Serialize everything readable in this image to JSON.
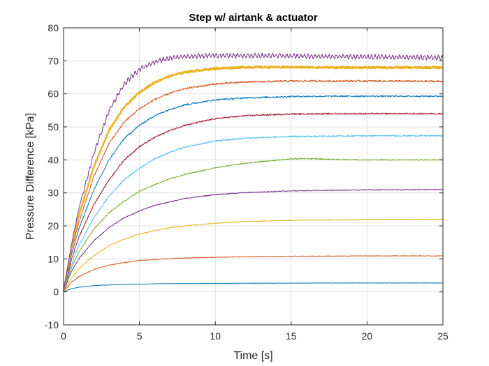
{
  "chart_data": {
    "type": "line",
    "title": "Step w/ airtank & actuator",
    "xlabel": "Time [s]",
    "ylabel": "Pressure Difference [kPa]",
    "xlim": [
      0,
      25
    ],
    "ylim": [
      -10,
      80
    ],
    "xticks": [
      "0",
      "5",
      "10",
      "15",
      "20",
      "25"
    ],
    "yticks": [
      "-10",
      "0",
      "10",
      "20",
      "30",
      "40",
      "50",
      "60",
      "70",
      "80"
    ],
    "grid": true,
    "legend": "none",
    "series": [
      {
        "color": "#0072BD",
        "x": [
          0,
          0.5,
          1,
          2,
          3,
          4,
          5,
          7,
          10,
          15,
          20,
          25
        ],
        "y": [
          0,
          0.9,
          1.4,
          1.9,
          2.1,
          2.25,
          2.35,
          2.5,
          2.6,
          2.65,
          2.7,
          2.7
        ]
      },
      {
        "color": "#D95319",
        "x": [
          0,
          0.5,
          1,
          2,
          3,
          4,
          5,
          7,
          10,
          15,
          20,
          25
        ],
        "y": [
          0,
          2.8,
          4.6,
          6.8,
          8.1,
          8.9,
          9.5,
          10.1,
          10.5,
          10.8,
          10.9,
          10.9
        ]
      },
      {
        "color": "#EDB120",
        "x": [
          0,
          0.5,
          1,
          2,
          3,
          4,
          5,
          6,
          7,
          8,
          10,
          12,
          15,
          18,
          20,
          25
        ],
        "y": [
          0,
          4,
          7,
          11,
          14,
          16,
          17.5,
          18.6,
          19.4,
          20,
          20.8,
          21.3,
          21.7,
          21.8,
          21.9,
          22
        ]
      },
      {
        "color": "#7E2F8E",
        "x": [
          0,
          0.5,
          1,
          2,
          3,
          4,
          5,
          6,
          8,
          10,
          12,
          15,
          18,
          20,
          25
        ],
        "y": [
          0,
          6,
          10,
          15.5,
          19.5,
          22.5,
          24.5,
          26.2,
          28.3,
          29.5,
          30.1,
          30.6,
          30.8,
          30.9,
          31
        ]
      },
      {
        "color": "#77AC30",
        "x": [
          0,
          0.5,
          1,
          2,
          3,
          4,
          5,
          6,
          7,
          8,
          10,
          12,
          14,
          15,
          16,
          18,
          20,
          22,
          25
        ],
        "y": [
          0,
          7,
          12,
          19,
          24,
          27.5,
          30.5,
          32.5,
          34.3,
          35.6,
          37.6,
          39,
          39.9,
          40.3,
          40.4,
          40.1,
          40,
          40,
          40
        ]
      },
      {
        "color": "#4DBEEE",
        "x": [
          0,
          0.5,
          1,
          2,
          3,
          4,
          5,
          6,
          7,
          8,
          10,
          12,
          15,
          18,
          20,
          25
        ],
        "y": [
          0,
          8,
          14,
          22.5,
          29,
          34,
          37.5,
          40.3,
          42.3,
          43.9,
          45.7,
          46.6,
          47.1,
          47.2,
          47.3,
          47.3
        ]
      },
      {
        "color": "#A2142F",
        "x": [
          0,
          0.5,
          1,
          2,
          3,
          4,
          5,
          6,
          7,
          8,
          10,
          12,
          15,
          18,
          20,
          25
        ],
        "y": [
          0,
          9.5,
          16.5,
          26.5,
          34,
          40,
          44,
          46.8,
          48.9,
          50.5,
          52.5,
          53.4,
          53.9,
          54,
          54,
          54
        ]
      },
      {
        "color": "#0072BD",
        "x": [
          0,
          0.5,
          1,
          2,
          3,
          4,
          5,
          6,
          7,
          8,
          10,
          12,
          15,
          18,
          20,
          25
        ],
        "y": [
          0,
          11,
          19,
          31,
          40,
          46.5,
          50.5,
          53.4,
          55.3,
          56.7,
          58.2,
          58.8,
          59.2,
          59.3,
          59.3,
          59.3
        ]
      },
      {
        "color": "#D95319",
        "x": [
          0,
          0.5,
          1,
          2,
          3,
          4,
          5,
          6,
          7,
          8,
          10,
          12,
          15,
          18,
          20,
          25
        ],
        "y": [
          0,
          12,
          21,
          35,
          45,
          51.5,
          55.5,
          58.3,
          60.2,
          61.6,
          63,
          63.6,
          63.9,
          63.9,
          63.9,
          63.8
        ]
      },
      {
        "color": "#EDB120",
        "x": [
          0,
          0.5,
          1,
          2,
          3,
          4,
          5,
          6,
          7,
          8,
          10,
          12,
          15,
          18,
          20,
          25
        ],
        "y": [
          0,
          13,
          23,
          38,
          49,
          56,
          60.5,
          63.5,
          65.4,
          66.6,
          67.7,
          68.1,
          68.1,
          68,
          68,
          68
        ]
      },
      {
        "color": "#7E2F8E",
        "x": [
          0,
          0.5,
          1,
          2,
          3,
          4,
          5,
          6,
          7,
          8,
          9,
          10,
          12,
          15,
          18,
          20,
          25
        ],
        "y": [
          0,
          14,
          25,
          42,
          55,
          63,
          67.5,
          69.7,
          70.8,
          71.3,
          71.5,
          71.6,
          71.6,
          71.5,
          71.3,
          71.2,
          71
        ]
      }
    ]
  }
}
